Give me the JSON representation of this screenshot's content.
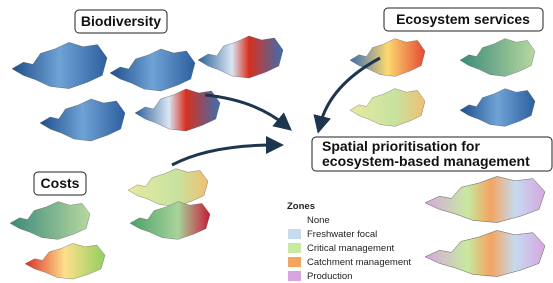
{
  "panels": {
    "biodiversity": "Biodiversity",
    "ecosystem_services": "Ecosystem services",
    "costs": "Costs",
    "prioritisation": [
      "Spatial prioritisation for",
      "ecosystem-based management"
    ]
  },
  "zones": {
    "title": "Zones",
    "items": [
      "None",
      "Freshwater focal",
      "Critical management",
      "Catchment management",
      "Production"
    ]
  }
}
